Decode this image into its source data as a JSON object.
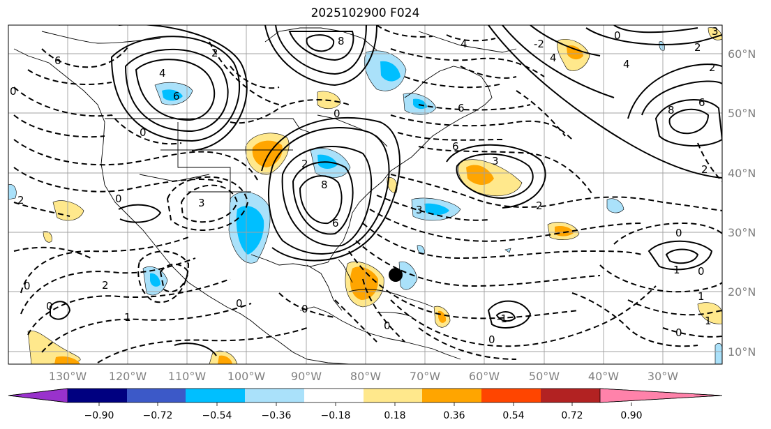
{
  "title": "2025102900 F024",
  "map": {
    "lon_labels": [
      "130°W",
      "120°W",
      "110°W",
      "100°W",
      "90°W",
      "80°W",
      "70°W",
      "60°W",
      "50°W",
      "40°W",
      "30°W"
    ],
    "lat_labels": [
      "60°N",
      "50°N",
      "40°N",
      "30°N",
      "20°N",
      "10°N"
    ],
    "grid_color": "#a0a0a0",
    "contour_labels": [
      "6",
      "4",
      "2",
      "8",
      "0",
      "3",
      "1",
      "-1",
      "-2"
    ],
    "marker": "filled-circle"
  },
  "colorbar": {
    "ticks": [
      "−0.90",
      "−0.72",
      "−0.54",
      "−0.36",
      "−0.18",
      "0.18",
      "0.36",
      "0.54",
      "0.72",
      "0.90"
    ],
    "colors": [
      "#9932cc",
      "#000080",
      "#3c59c8",
      "#00bfff",
      "#aae1fa",
      "#ffffff",
      "#ffe88c",
      "#ffa500",
      "#ff4500",
      "#b22222",
      "#ff82aa"
    ]
  }
}
